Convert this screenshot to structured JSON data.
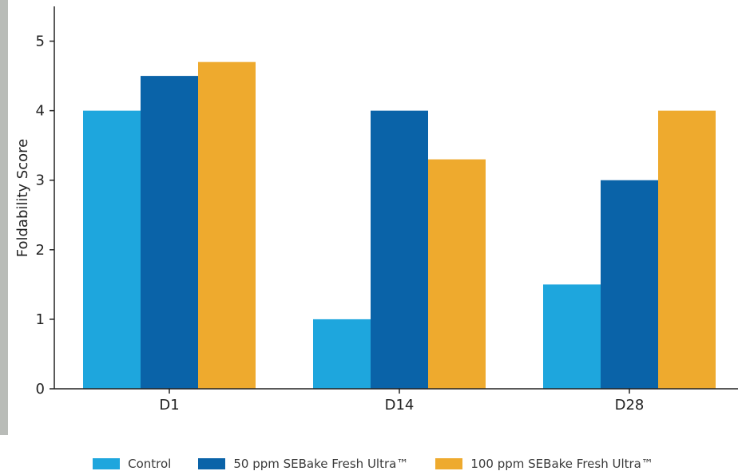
{
  "chart_data": {
    "type": "bar",
    "categories": [
      "D1",
      "D14",
      "D28"
    ],
    "series": [
      {
        "name": "Control",
        "values": [
          4,
          1,
          1.5
        ]
      },
      {
        "name": "50 ppm SEBake Fresh Ultra™",
        "values": [
          4.5,
          4,
          3
        ]
      },
      {
        "name": "100 ppm SEBake Fresh Ultra™",
        "values": [
          4.7,
          3.3,
          4
        ]
      }
    ],
    "title": "",
    "xlabel": "",
    "ylabel": "Foldability Score",
    "ylim": [
      0,
      5.5
    ],
    "yticks": [
      "0",
      "1",
      "2",
      "3",
      "4",
      "5"
    ],
    "grid": false,
    "legend_position": "bottom-center",
    "colors": [
      "#1ea6dd",
      "#0a63a8",
      "#eeaa2e"
    ]
  }
}
